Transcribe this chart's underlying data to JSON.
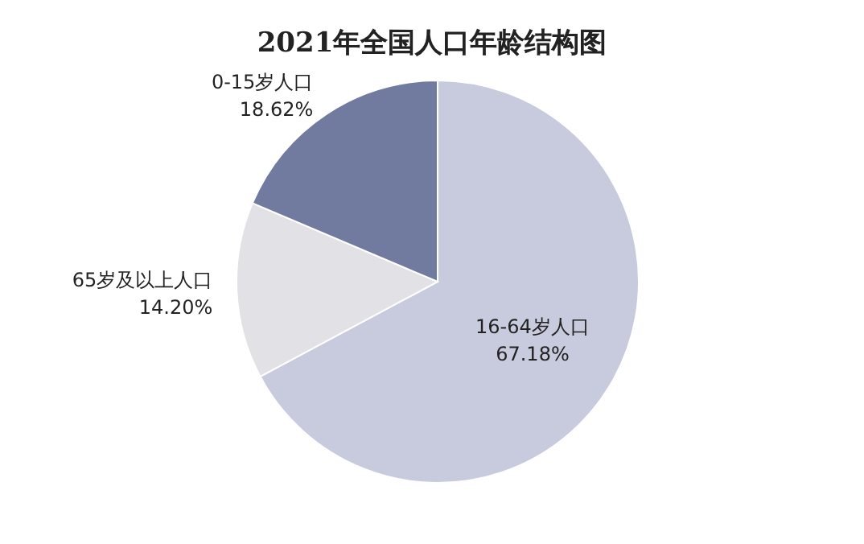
{
  "chart_data": {
    "type": "pie",
    "title": "2021年全国人口年龄结构图",
    "categories": [
      "16-64岁人口",
      "65岁及以上人口",
      "0-15岁人口"
    ],
    "values": [
      67.18,
      14.2,
      18.62
    ],
    "colors": [
      "#c8cade",
      "#e2e2e6",
      "#717b9f"
    ],
    "value_labels": [
      "67.18%",
      "14.20%",
      "18.62%"
    ]
  }
}
